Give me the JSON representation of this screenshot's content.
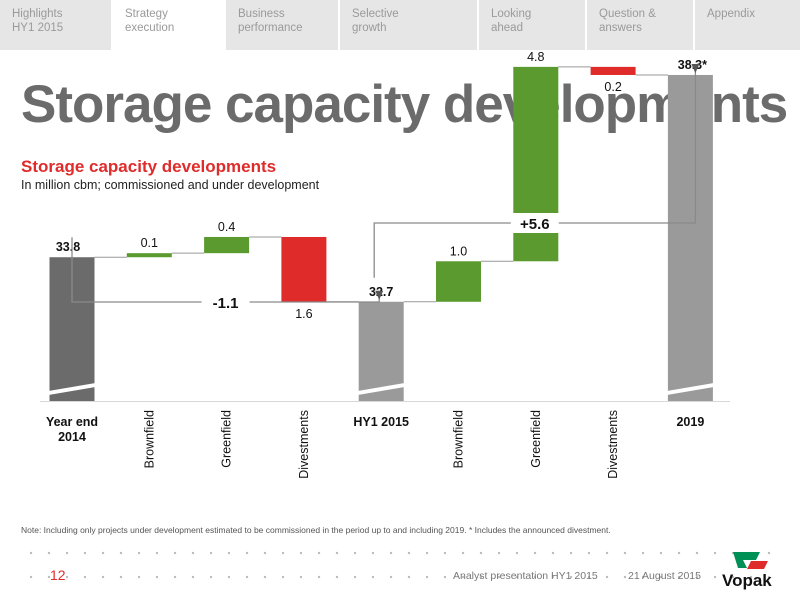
{
  "nav": {
    "tabs": [
      {
        "label": "Highlights\nHY1 2015",
        "active": false
      },
      {
        "label": "Strategy\nexecution",
        "active": true
      },
      {
        "label": "Business\nperformance",
        "active": false
      },
      {
        "label": "Selective\ngrowth",
        "active": false
      },
      {
        "label": "Looking\nahead",
        "active": false
      },
      {
        "label": "Question &\nanswers",
        "active": false
      },
      {
        "label": "Appendix",
        "active": false
      }
    ]
  },
  "headline": {
    "bold": "Storage",
    "rest": " capacity developments"
  },
  "chart": {
    "title": "Storage capacity developments",
    "subtitle": "In million cbm; commissioned and under development"
  },
  "chart_data": {
    "type": "bar",
    "subtype": "waterfall",
    "title": "Storage capacity developments",
    "subtitle": "In million cbm; commissioned and under development",
    "categories": [
      "Year end\n2014",
      "Brownfield",
      "Greenfield",
      "Divestments",
      "HY1 2015",
      "Brownfield",
      "Greenfield",
      "Divestments",
      "2019"
    ],
    "bars": [
      {
        "kind": "total",
        "value": 33.8,
        "label": "33.8"
      },
      {
        "kind": "increase",
        "value": 0.1,
        "label": "0.1"
      },
      {
        "kind": "increase",
        "value": 0.4,
        "label": "0.4"
      },
      {
        "kind": "decrease",
        "value": 1.6,
        "label": "1.6"
      },
      {
        "kind": "total",
        "value": 32.7,
        "label": "32.7"
      },
      {
        "kind": "increase",
        "value": 1.0,
        "label": "1.0"
      },
      {
        "kind": "increase",
        "value": 4.8,
        "label": "4.8"
      },
      {
        "kind": "decrease",
        "value": 0.2,
        "label": "0.2"
      },
      {
        "kind": "total",
        "value": 38.3,
        "label": "38.3*"
      }
    ],
    "brackets": [
      {
        "from": 0,
        "to": 4,
        "label": "-1.1"
      },
      {
        "from": 4,
        "to": 8,
        "label": "+5.6"
      }
    ],
    "axis_break": true,
    "colors": {
      "total_start": "#6b6b6b",
      "total": "#9a9a9a",
      "increase": "#5a9a2e",
      "decrease": "#e02b2b",
      "connector": "#999999"
    }
  },
  "note": "Note: Including only projects under development estimated to be commissioned in the period up to and including 2019. * Includes the announced divestment.",
  "footer": {
    "page": "12",
    "presentation": "Analyst presentation HY1 2015",
    "date": "21 August 2015",
    "logo_text": "Vopak"
  }
}
